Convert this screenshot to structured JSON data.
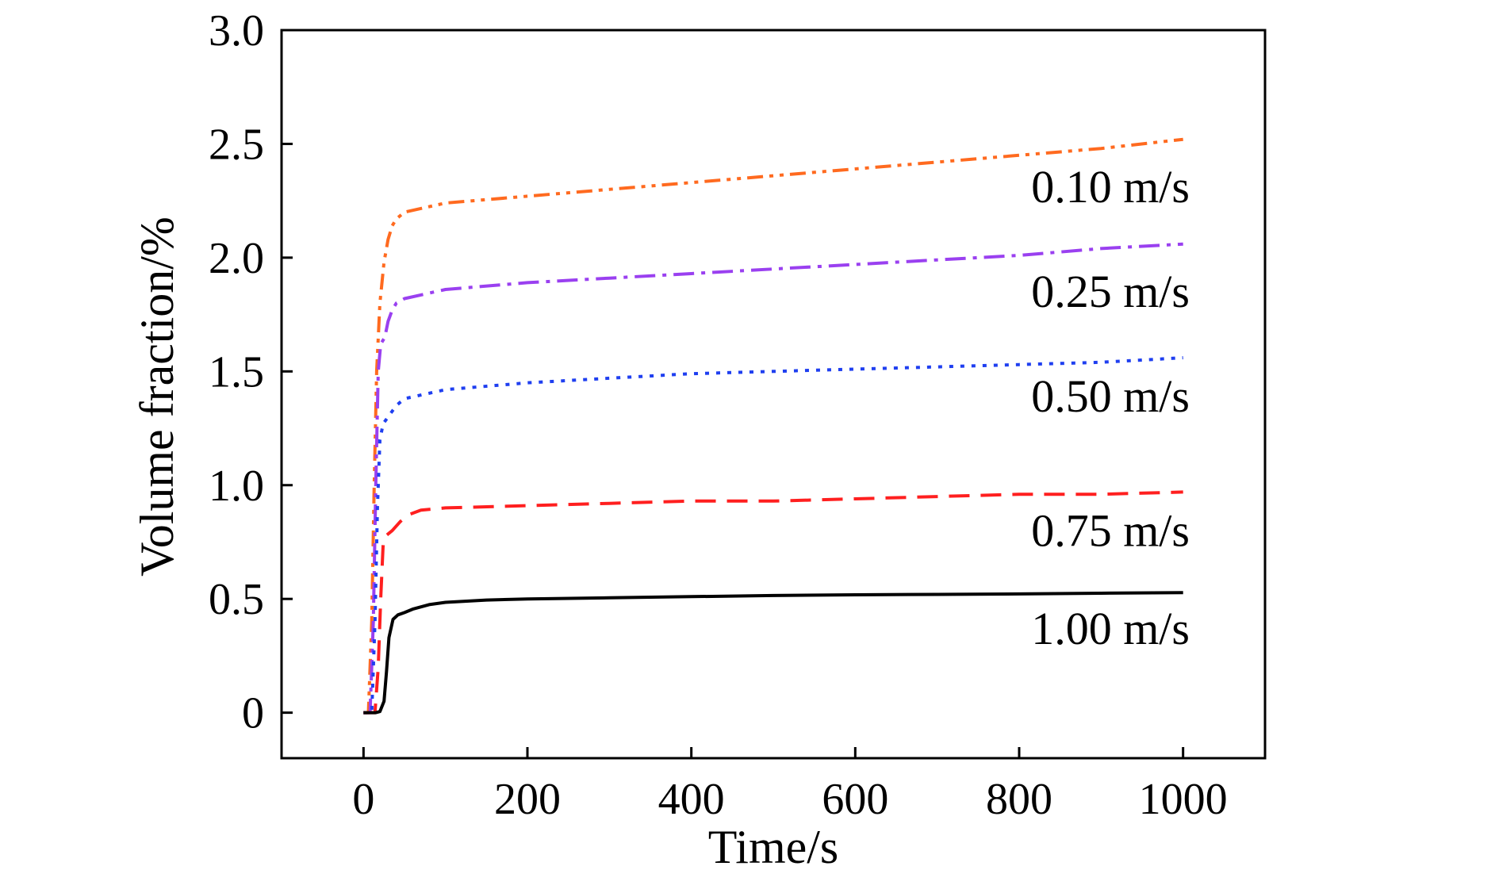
{
  "chart_data": {
    "type": "line",
    "xlabel": "Time/s",
    "ylabel": "Volume fraction/%",
    "xlim": [
      -100,
      1100
    ],
    "ylim": [
      -0.2,
      3.0
    ],
    "xticks": [
      0,
      200,
      400,
      600,
      800,
      1000
    ],
    "xtick_labels": [
      "0",
      "200",
      "400",
      "600",
      "800",
      "1000"
    ],
    "yticks": [
      0,
      0.5,
      1.0,
      1.5,
      2.0,
      2.5,
      3.0
    ],
    "ytick_labels": [
      "0",
      "0.5",
      "1.0",
      "1.5",
      "2.0",
      "2.5",
      "3.0"
    ],
    "grid": false,
    "series": [
      {
        "name": "0.10 m/s",
        "color": "#ff6a1f",
        "dash": "dash-dot-dot",
        "points": [
          [
            0,
            0
          ],
          [
            6,
            0
          ],
          [
            10,
            0.4
          ],
          [
            13,
            1.0
          ],
          [
            16,
            1.5
          ],
          [
            20,
            1.8
          ],
          [
            25,
            1.98
          ],
          [
            30,
            2.08
          ],
          [
            35,
            2.14
          ],
          [
            40,
            2.17
          ],
          [
            50,
            2.2
          ],
          [
            100,
            2.24
          ],
          [
            200,
            2.27
          ],
          [
            300,
            2.3
          ],
          [
            400,
            2.33
          ],
          [
            500,
            2.36
          ],
          [
            600,
            2.39
          ],
          [
            700,
            2.42
          ],
          [
            800,
            2.45
          ],
          [
            900,
            2.48
          ],
          [
            1000,
            2.52
          ]
        ]
      },
      {
        "name": "0.25 m/s",
        "color": "#9a40f0",
        "dash": "dash-dot",
        "points": [
          [
            0,
            0
          ],
          [
            8,
            0
          ],
          [
            12,
            0.4
          ],
          [
            15,
            1.0
          ],
          [
            18,
            1.5
          ],
          [
            21,
            1.62
          ],
          [
            26,
            1.65
          ],
          [
            30,
            1.72
          ],
          [
            35,
            1.77
          ],
          [
            40,
            1.8
          ],
          [
            50,
            1.82
          ],
          [
            100,
            1.86
          ],
          [
            200,
            1.89
          ],
          [
            300,
            1.91
          ],
          [
            400,
            1.93
          ],
          [
            500,
            1.95
          ],
          [
            600,
            1.97
          ],
          [
            700,
            1.99
          ],
          [
            800,
            2.01
          ],
          [
            900,
            2.04
          ],
          [
            1000,
            2.06
          ]
        ]
      },
      {
        "name": "0.50 m/s",
        "color": "#1f3ff0",
        "dash": "dotted",
        "points": [
          [
            0,
            0
          ],
          [
            10,
            0
          ],
          [
            14,
            0.4
          ],
          [
            17,
            0.9
          ],
          [
            20,
            1.2
          ],
          [
            24,
            1.27
          ],
          [
            30,
            1.3
          ],
          [
            40,
            1.35
          ],
          [
            50,
            1.38
          ],
          [
            100,
            1.42
          ],
          [
            200,
            1.45
          ],
          [
            300,
            1.47
          ],
          [
            400,
            1.49
          ],
          [
            500,
            1.5
          ],
          [
            600,
            1.51
          ],
          [
            700,
            1.52
          ],
          [
            800,
            1.53
          ],
          [
            900,
            1.54
          ],
          [
            1000,
            1.56
          ]
        ]
      },
      {
        "name": "0.75 m/s",
        "color": "#ff1f1f",
        "dash": "dashed",
        "points": [
          [
            0,
            0
          ],
          [
            14,
            0
          ],
          [
            18,
            0.2
          ],
          [
            21,
            0.5
          ],
          [
            24,
            0.74
          ],
          [
            28,
            0.78
          ],
          [
            35,
            0.8
          ],
          [
            45,
            0.84
          ],
          [
            55,
            0.87
          ],
          [
            70,
            0.89
          ],
          [
            100,
            0.9
          ],
          [
            200,
            0.91
          ],
          [
            300,
            0.92
          ],
          [
            400,
            0.93
          ],
          [
            500,
            0.93
          ],
          [
            600,
            0.94
          ],
          [
            700,
            0.95
          ],
          [
            800,
            0.96
          ],
          [
            900,
            0.96
          ],
          [
            1000,
            0.97
          ]
        ]
      },
      {
        "name": "1.00 m/s",
        "color": "#000000",
        "dash": "solid",
        "points": [
          [
            0,
            0
          ],
          [
            15,
            0
          ],
          [
            20,
            0.005
          ],
          [
            25,
            0.05
          ],
          [
            28,
            0.18
          ],
          [
            31,
            0.33
          ],
          [
            36,
            0.41
          ],
          [
            42,
            0.43
          ],
          [
            50,
            0.44
          ],
          [
            60,
            0.455
          ],
          [
            80,
            0.475
          ],
          [
            100,
            0.485
          ],
          [
            150,
            0.495
          ],
          [
            200,
            0.5
          ],
          [
            300,
            0.505
          ],
          [
            400,
            0.51
          ],
          [
            500,
            0.515
          ],
          [
            600,
            0.518
          ],
          [
            700,
            0.52
          ],
          [
            800,
            0.522
          ],
          [
            900,
            0.525
          ],
          [
            1000,
            0.528
          ]
        ]
      }
    ],
    "labels": [
      "0.10 m/s",
      "0.25 m/s",
      "0.50 m/s",
      "0.75 m/s",
      "1.00 m/s"
    ]
  }
}
